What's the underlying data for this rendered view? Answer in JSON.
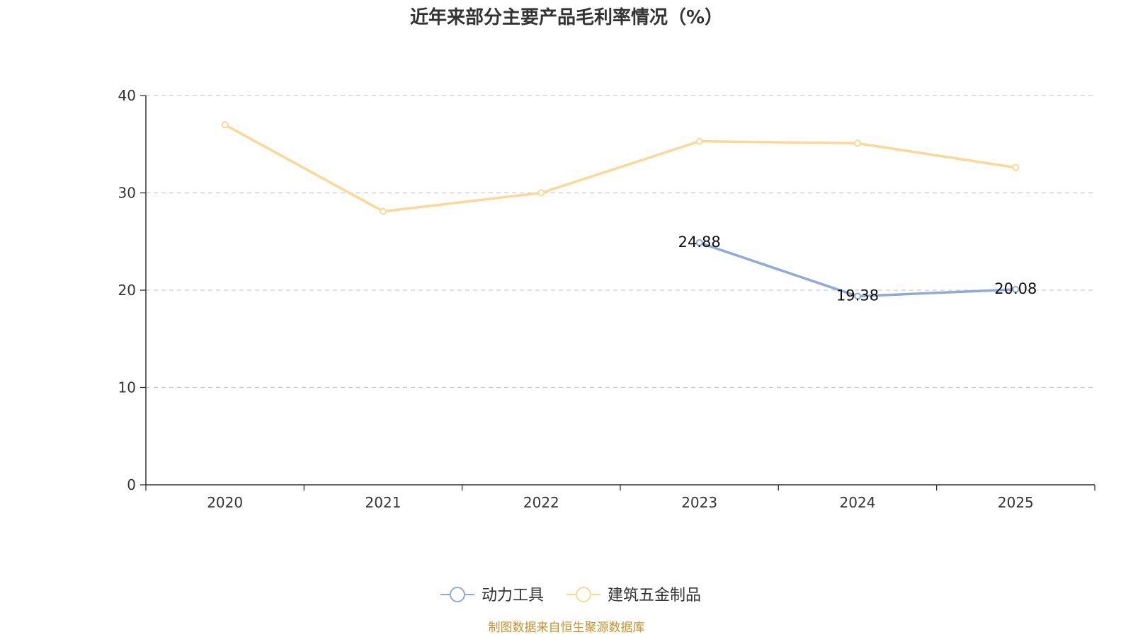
{
  "title": "近年来部分主要产品毛利率情况（%）",
  "source": "制图数据来自恒生聚源数据库",
  "chart_data": {
    "type": "line",
    "title": "近年来部分主要产品毛利率情况（%）",
    "categories": [
      "2020",
      "2021",
      "2022",
      "2023",
      "2024",
      "2025"
    ],
    "ylim": [
      0,
      40
    ],
    "yticks": [
      "0",
      "10",
      "20",
      "30",
      "40"
    ],
    "grid": true,
    "legend_position": "bottom",
    "series": [
      {
        "name": "动力工具",
        "color": "#8eaad8",
        "values": [
          null,
          null,
          null,
          24.88,
          19.38,
          20.08
        ],
        "labels": [
          "",
          "",
          "",
          "24.88",
          "19.38",
          "20.08"
        ]
      },
      {
        "name": "建筑五金制品",
        "color": "#fbd896",
        "values": [
          37.0,
          28.1,
          30.0,
          35.3,
          35.1,
          32.6
        ],
        "labels": [
          "",
          "",
          "",
          "",
          "",
          ""
        ]
      }
    ]
  }
}
